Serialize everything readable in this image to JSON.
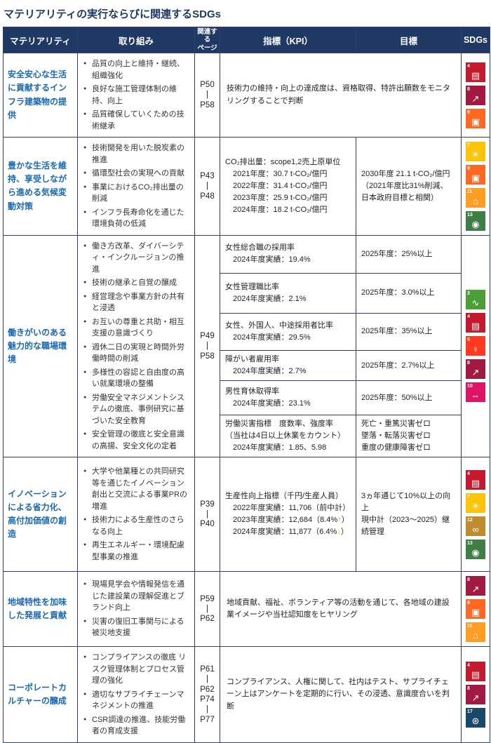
{
  "title": "マテリアリティの実行ならびに関連するSDGs",
  "colors": {
    "header_bg": "#1F3864",
    "materiality_text": "#1A68B2",
    "border": "#31406E",
    "arrow_up": "#F39800",
    "arrow_down": "#F5B800"
  },
  "header": {
    "materiality": "マテリアリティ",
    "initiatives": "取り組み",
    "pages_line1": "関連する",
    "pages_line2": "ページ",
    "kpi": "指標（KPI）",
    "target": "目標",
    "sdgs": "SDGs"
  },
  "rows": [
    {
      "materiality": "安全安心な生活に貢献するインフラ建築物の提供",
      "initiatives": [
        "品質の向上と維持・継続、組織強化",
        "良好な施工管理体制の維持、向上",
        "品質確保していくための技術継承"
      ],
      "pages": [
        "P50",
        "|",
        "P58"
      ],
      "kpi_span": "技術力の維持・向上の達成度は、資格取得、特許出願数をモニタリングすることで判断",
      "sdgs": [
        {
          "num": "4",
          "glyph": "▤",
          "color": "#C5192D"
        },
        {
          "num": "8",
          "glyph": "↗",
          "color": "#A21942"
        },
        {
          "num": "9",
          "glyph": "▣",
          "color": "#FD6925"
        }
      ]
    },
    {
      "materiality": "豊かな生活を維持、享受しながら進める気候変動対策",
      "initiatives": [
        "技術開発を用いた脱炭素の推進",
        "循環型社会の実現への貢献",
        "事業におけるCO₂排出量の削減",
        "インフラ長寿命化を通じた環境負荷の低減"
      ],
      "pages": [
        "P43",
        "|",
        "P48"
      ],
      "kpi_lines": [
        "CO₂排出量：scope1,2売上原単位",
        "　2021年度：30.7 t-CO₂/億円",
        "　2022年度：31.4 t-CO₂/億円",
        "　2023年度：25.9 t-CO₂/億円",
        "　2024年度：18.2 t-CO₂/億円"
      ],
      "target_lines": [
        "2030年度 21.1 t-CO₂/億円",
        "（2021年度比31%削減、",
        "日本政府目標と相関）"
      ],
      "sdgs": [
        {
          "num": "7",
          "glyph": "☀",
          "color": "#FCC30B"
        },
        {
          "num": "9",
          "glyph": "▣",
          "color": "#FD6925"
        },
        {
          "num": "11",
          "glyph": "⌂",
          "color": "#FD9D24"
        },
        {
          "num": "13",
          "glyph": "◉",
          "color": "#3F7E44"
        }
      ]
    },
    {
      "materiality": "働きがいのある魅力的な職場環境",
      "initiatives": [
        "働き方改革、ダイバーシティ・インクルージョンの推進",
        "技術の継承と自覚の醸成",
        "経営理念や事業方針の共有と浸透",
        "お互いの尊重と共助・相互支援の意識づくり",
        "週休二日の実現と時間外労働時間の削減",
        "多様性の容認と自由度の高い就業環境の整備",
        "労働安全マネジメントシステムの徹底、事例研究に基づいた安全教育",
        "安全管理の徹底と安全意識の高揚、安全文化の定着"
      ],
      "pages": [
        "P49",
        "|",
        "P58"
      ],
      "sub_rows": [
        {
          "kpi_lines": [
            "女性総合職の採用率",
            "　2024年度実績：19.4%"
          ],
          "target_lines": [
            "2025年度：25%以上"
          ]
        },
        {
          "kpi_lines": [
            "女性管理職比率",
            "　2024年度実績：2.1%"
          ],
          "target_lines": [
            "2025年度：3.0%以上"
          ]
        },
        {
          "kpi_lines": [
            "女性、外国人、中途採用者比率",
            "　2024年度実績：29.5%"
          ],
          "target_lines": [
            "2025年度：35%以上"
          ]
        },
        {
          "kpi_lines": [
            "障がい者雇用率",
            "　2024年度実績：2.7%"
          ],
          "target_lines": [
            "2025年度：2.7%以上"
          ]
        },
        {
          "kpi_lines": [
            "男性育休取得率",
            "　2024年度実績：23.1%"
          ],
          "target_lines": [
            "2025年度：50%以上"
          ]
        },
        {
          "kpi_lines": [
            "労働災害指標　度数率、強度率",
            "（当社は4日以上休業をカウント）",
            "　2024年度実績：1.85、5.98"
          ],
          "target_lines": [
            "死亡・重篤災害ゼロ",
            "墜落・転落災害ゼロ",
            "重度の健康障害ゼロ"
          ]
        }
      ],
      "sdgs": [
        {
          "num": "3",
          "glyph": "∿",
          "color": "#4C9F38"
        },
        {
          "num": "4",
          "glyph": "▤",
          "color": "#C5192D"
        },
        {
          "num": "5",
          "glyph": "♀",
          "color": "#FF3A21"
        },
        {
          "num": "8",
          "glyph": "↗",
          "color": "#A21942"
        },
        {
          "num": "10",
          "glyph": "⇔",
          "color": "#DD1367"
        }
      ]
    },
    {
      "materiality": "イノベーションによる省力化、高付加価値の創造",
      "initiatives": [
        "大学や他業種との共同研究等を通じたイノベーション創出と交流による事業PRの増進",
        "技術力による生産性のさらなる向上",
        "再生エネルギー・環境配慮型事業の推進"
      ],
      "pages": [
        "P39",
        "|",
        "P40"
      ],
      "kpi_lines": [
        "生産性向上指標（千円/生産人員）",
        "　2022年度実績：11,706（前中計）",
        "　2023年度実績：12,684（8.4%↑）",
        "　2024年度実績：11,877（6.4%↓）"
      ],
      "target_lines": [
        "3ヵ年通じて10%以上の向上",
        "現中計（2023～2025）継続管理"
      ],
      "sdgs": [
        {
          "num": "4",
          "glyph": "▤",
          "color": "#C5192D"
        },
        {
          "num": "7",
          "glyph": "☀",
          "color": "#FCC30B"
        },
        {
          "num": "12",
          "glyph": "∞",
          "color": "#BF8B2E"
        },
        {
          "num": "13",
          "glyph": "◉",
          "color": "#3F7E44"
        }
      ]
    },
    {
      "materiality": "地域特性を加味した発展と貢献",
      "initiatives": [
        "現場見学会や情報発信を通じた建設業の理解促進とブランド向上",
        "災害の復旧工事関与による被災地支援"
      ],
      "pages": [
        "P59",
        "|",
        "P62"
      ],
      "kpi_span": "地域貢献、福祉、ボランティア等の活動を通じて、各地域の建設業イメージや当社認知度をヒヤリング",
      "sdgs": [
        {
          "num": "8",
          "glyph": "↗",
          "color": "#A21942"
        },
        {
          "num": "9",
          "glyph": "▣",
          "color": "#FD6925"
        },
        {
          "num": "11",
          "glyph": "⌂",
          "color": "#FD9D24"
        }
      ]
    },
    {
      "materiality": "コーポレートカルチャーの醸成",
      "initiatives": [
        "コンプライアンスの徹底 リスク管理体制とプロセス管理の強化",
        "適切なサプライチェーンマネジメントの推進",
        "CSR調達の推進、技能労働者の育成支援"
      ],
      "pages": [
        "P61",
        "|",
        "P62",
        "P74",
        "|",
        "P77"
      ],
      "kpi_span": "コンプライアンス、人権に関して、社内はテスト、サプライチェーン上はアンケートを定期的に行い、その浸透、意識度合いを判断",
      "sdgs": [
        {
          "num": "4",
          "glyph": "▤",
          "color": "#C5192D"
        },
        {
          "num": "8",
          "glyph": "↗",
          "color": "#A21942"
        },
        {
          "num": "17",
          "glyph": "⊛",
          "color": "#19486A"
        }
      ]
    }
  ]
}
